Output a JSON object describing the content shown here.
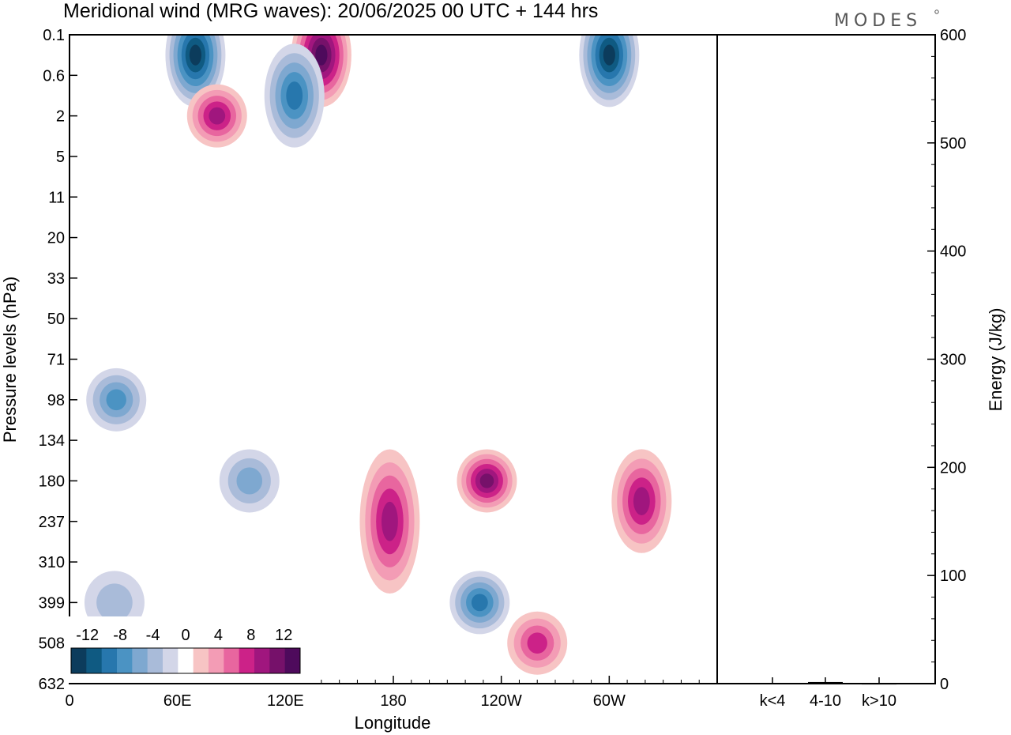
{
  "chart_data": [
    {
      "type": "heatmap",
      "title": "Meridional wind (MRG waves):  20/06/2025  00 UTC  + 144 hrs",
      "xlabel": "Longitude",
      "ylabel": "Pressure levels (hPa)",
      "x_ticks": [
        "0",
        "60E",
        "120E",
        "180",
        "120W",
        "60W"
      ],
      "x_tick_values": [
        0,
        60,
        120,
        180,
        240,
        300
      ],
      "xlim": [
        0,
        360
      ],
      "y_ticks": [
        "0.1",
        "0.6",
        "2",
        "5",
        "11",
        "20",
        "33",
        "50",
        "71",
        "98",
        "134",
        "180",
        "237",
        "310",
        "399",
        "508",
        "632"
      ],
      "y_scale": "pressure levels (top 0.1 hPa, bottom 632 hPa)",
      "colorbar": {
        "labels": [
          "-12",
          "-8",
          "-4",
          "0",
          "4",
          "8",
          "12"
        ],
        "levels": [
          -14,
          -12,
          -10,
          -8,
          -6,
          -4,
          -2,
          2,
          4,
          6,
          8,
          10,
          12,
          14
        ],
        "colors": [
          "#0c3c5c",
          "#0f5a82",
          "#2777ad",
          "#4b93c3",
          "#7ea8d0",
          "#a9bbd9",
          "#d3d6e8",
          "#ffffff",
          "#f7c4c4",
          "#f39cb5",
          "#e8669f",
          "#cc2288",
          "#a0167e",
          "#76116a",
          "#4e0a5c"
        ],
        "placement": "bottom-left"
      },
      "features": [
        {
          "lon": 70,
          "p": "0.1-0.6",
          "sign": "negative",
          "peak": -14
        },
        {
          "lon": 140,
          "p": "0.1-0.6",
          "sign": "positive",
          "peak": 14
        },
        {
          "lon": 300,
          "p": "0.1-0.6",
          "sign": "negative",
          "peak": -14
        },
        {
          "lon": 125,
          "p": "0.6-2",
          "sign": "negative",
          "peak": -10
        },
        {
          "lon": 82,
          "p": "2",
          "sign": "positive",
          "peak": 10
        },
        {
          "lon": 26,
          "p": "98",
          "sign": "negative",
          "peak": -8
        },
        {
          "lon": 100,
          "p": "180",
          "sign": "negative",
          "peak": -6
        },
        {
          "lon": 178,
          "p": "180-310",
          "sign": "positive",
          "peak": 10
        },
        {
          "lon": 232,
          "p": "180",
          "sign": "positive",
          "peak": 12
        },
        {
          "lon": 318,
          "p": "180-237",
          "sign": "positive",
          "peak": 10
        },
        {
          "lon": 228,
          "p": "399",
          "sign": "negative",
          "peak": -10
        },
        {
          "lon": 260,
          "p": "508",
          "sign": "positive",
          "peak": 8
        },
        {
          "lon": 25,
          "p": "399",
          "sign": "negative",
          "peak": -4
        }
      ]
    },
    {
      "type": "bar",
      "categories": [
        "k<4",
        "4-10",
        "k>10"
      ],
      "values": [
        0.5,
        1.5,
        0.3
      ],
      "ylabel": "Energy (J/kg)",
      "ylim": [
        0,
        600
      ],
      "y_ticks": [
        "0",
        "100",
        "200",
        "300",
        "400",
        "500",
        "600"
      ]
    }
  ],
  "branding": {
    "logo_text": "MODES"
  }
}
